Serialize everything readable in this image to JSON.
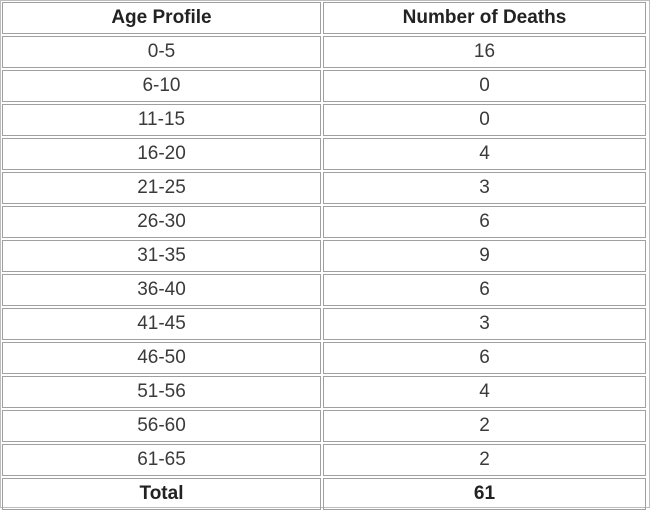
{
  "table": {
    "headers": {
      "age": "Age Profile",
      "deaths": "Number of Deaths"
    },
    "rows": [
      {
        "age": "0-5",
        "deaths": "16"
      },
      {
        "age": "6-10",
        "deaths": "0"
      },
      {
        "age": "11-15",
        "deaths": "0"
      },
      {
        "age": "16-20",
        "deaths": "4"
      },
      {
        "age": "21-25",
        "deaths": "3"
      },
      {
        "age": "26-30",
        "deaths": "6"
      },
      {
        "age": "31-35",
        "deaths": "9"
      },
      {
        "age": "36-40",
        "deaths": "6"
      },
      {
        "age": "41-45",
        "deaths": "3"
      },
      {
        "age": "46-50",
        "deaths": "6"
      },
      {
        "age": "51-56",
        "deaths": "4"
      },
      {
        "age": "56-60",
        "deaths": "2"
      },
      {
        "age": "61-65",
        "deaths": "2"
      }
    ],
    "total": {
      "label": "Total",
      "value": "61"
    }
  }
}
